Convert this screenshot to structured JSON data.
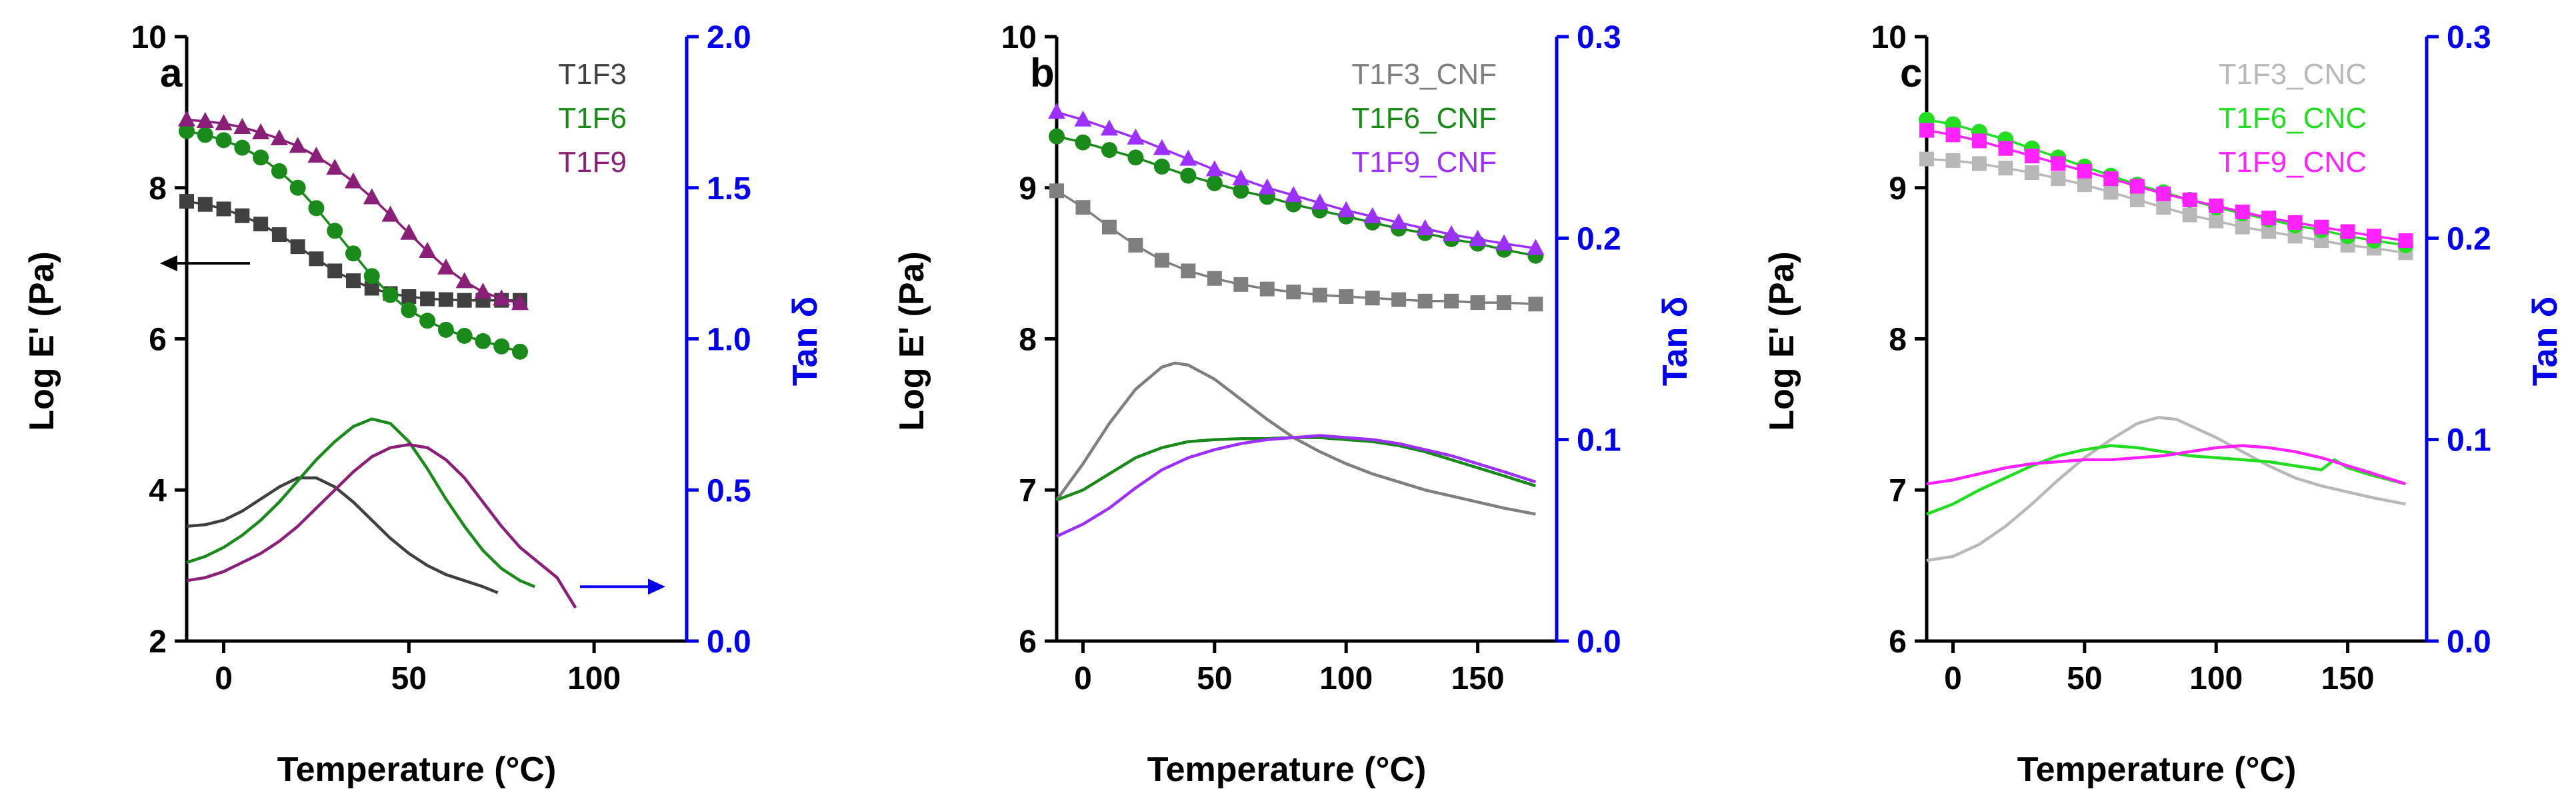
{
  "chart_data": [
    {
      "panel": "a",
      "type": "line",
      "xlabel": "Temperature (°C)",
      "ylabel": "Log E' (Pa)",
      "y2label": "Tan δ",
      "xlim": [
        -10,
        125
      ],
      "ylim": [
        2,
        10
      ],
      "y2lim": [
        0,
        2.0
      ],
      "xticks": [
        0,
        50,
        100
      ],
      "yticks": [
        2,
        4,
        6,
        8,
        10
      ],
      "y2ticks": [
        0.0,
        0.5,
        1.0,
        1.5,
        2.0
      ],
      "xtick_labels": [
        "0",
        "50",
        "100"
      ],
      "ytick_labels": [
        "2",
        "4",
        "6",
        "8",
        "10"
      ],
      "y2tick_labels": [
        "0.0",
        "0.5",
        "1.0",
        "1.5",
        "2.0"
      ],
      "legend_position": "top-right",
      "annotations": [
        "left arrow: E' curves read on left axis",
        "right arrow: tan δ curves read on right axis"
      ],
      "series": [
        {
          "name": "T1F3",
          "color": "#404040",
          "marker": "square",
          "modulus_x": [
            -10,
            -5,
            0,
            5,
            10,
            15,
            20,
            25,
            30,
            35,
            40,
            45,
            50,
            55,
            60,
            65,
            70,
            75,
            80
          ],
          "modulus": [
            7.82,
            7.78,
            7.72,
            7.63,
            7.52,
            7.38,
            7.22,
            7.06,
            6.9,
            6.77,
            6.67,
            6.6,
            6.56,
            6.53,
            6.52,
            6.51,
            6.51,
            6.51,
            6.51
          ],
          "tan_x": [
            -10,
            -5,
            0,
            5,
            10,
            15,
            20,
            25,
            30,
            35,
            40,
            45,
            50,
            55,
            60,
            65,
            70,
            74
          ],
          "tan": [
            0.38,
            0.385,
            0.4,
            0.43,
            0.47,
            0.51,
            0.54,
            0.54,
            0.51,
            0.46,
            0.4,
            0.34,
            0.29,
            0.25,
            0.22,
            0.2,
            0.18,
            0.16
          ]
        },
        {
          "name": "T1F6",
          "color": "#1a8a1a",
          "marker": "circle",
          "modulus_x": [
            -10,
            -5,
            0,
            5,
            10,
            15,
            20,
            25,
            30,
            35,
            40,
            45,
            50,
            55,
            60,
            65,
            70,
            75,
            80
          ],
          "modulus": [
            8.75,
            8.7,
            8.63,
            8.53,
            8.4,
            8.22,
            8.0,
            7.73,
            7.43,
            7.13,
            6.83,
            6.58,
            6.38,
            6.24,
            6.12,
            6.04,
            5.97,
            5.9,
            5.83
          ],
          "tan_x": [
            -10,
            -5,
            0,
            5,
            10,
            15,
            20,
            25,
            30,
            35,
            40,
            45,
            50,
            55,
            60,
            65,
            70,
            75,
            80,
            84
          ],
          "tan": [
            0.26,
            0.28,
            0.31,
            0.35,
            0.4,
            0.46,
            0.53,
            0.6,
            0.66,
            0.71,
            0.735,
            0.72,
            0.66,
            0.57,
            0.47,
            0.38,
            0.3,
            0.24,
            0.2,
            0.18
          ]
        },
        {
          "name": "T1F9",
          "color": "#8a1f78",
          "marker": "triangle",
          "modulus_x": [
            -10,
            -5,
            0,
            5,
            10,
            15,
            20,
            25,
            30,
            35,
            40,
            45,
            50,
            55,
            60,
            65,
            70,
            75,
            80
          ],
          "modulus": [
            8.9,
            8.88,
            8.85,
            8.8,
            8.73,
            8.65,
            8.55,
            8.42,
            8.26,
            8.08,
            7.87,
            7.64,
            7.4,
            7.16,
            6.94,
            6.76,
            6.62,
            6.53,
            6.47
          ],
          "tan_x": [
            -10,
            -5,
            0,
            5,
            10,
            15,
            20,
            25,
            30,
            35,
            40,
            45,
            50,
            55,
            60,
            65,
            70,
            75,
            80,
            85,
            90,
            95
          ],
          "tan": [
            0.2,
            0.21,
            0.23,
            0.26,
            0.29,
            0.33,
            0.38,
            0.44,
            0.5,
            0.56,
            0.61,
            0.64,
            0.65,
            0.64,
            0.6,
            0.54,
            0.46,
            0.38,
            0.31,
            0.26,
            0.21,
            0.11
          ]
        }
      ]
    },
    {
      "panel": "b",
      "type": "line",
      "xlabel": "Temperature (°C)",
      "ylabel": "Log E' (Pa)",
      "y2label": "Tan δ",
      "xlim": [
        -10,
        180
      ],
      "ylim": [
        6,
        10
      ],
      "y2lim": [
        0,
        0.3
      ],
      "xticks": [
        0,
        50,
        100,
        150
      ],
      "yticks": [
        6,
        7,
        8,
        9,
        10
      ],
      "y2ticks": [
        0.0,
        0.1,
        0.2,
        0.3
      ],
      "xtick_labels": [
        "0",
        "50",
        "100",
        "150"
      ],
      "ytick_labels": [
        "6",
        "7",
        "8",
        "9",
        "10"
      ],
      "y2tick_labels": [
        "0.0",
        "0.1",
        "0.2",
        "0.3"
      ],
      "legend_position": "top-right",
      "series": [
        {
          "name": "T1F3_CNF",
          "color": "#7f7f7f",
          "marker": "square",
          "modulus_x": [
            -10,
            0,
            10,
            20,
            30,
            40,
            50,
            60,
            70,
            80,
            90,
            100,
            110,
            120,
            130,
            140,
            150,
            160,
            172
          ],
          "modulus": [
            8.98,
            8.87,
            8.74,
            8.62,
            8.52,
            8.45,
            8.4,
            8.36,
            8.33,
            8.31,
            8.29,
            8.28,
            8.27,
            8.26,
            8.25,
            8.25,
            8.24,
            8.24,
            8.23
          ],
          "tan_x": [
            -10,
            0,
            10,
            20,
            30,
            35,
            40,
            50,
            60,
            70,
            80,
            90,
            100,
            110,
            120,
            130,
            140,
            150,
            160,
            172
          ],
          "tan": [
            0.07,
            0.088,
            0.108,
            0.125,
            0.136,
            0.138,
            0.137,
            0.13,
            0.12,
            0.11,
            0.101,
            0.094,
            0.088,
            0.083,
            0.079,
            0.075,
            0.072,
            0.069,
            0.066,
            0.063
          ]
        },
        {
          "name": "T1F6_CNF",
          "color": "#1a8a1a",
          "marker": "circle",
          "modulus_x": [
            -10,
            0,
            10,
            20,
            30,
            40,
            50,
            60,
            70,
            80,
            90,
            100,
            110,
            120,
            130,
            140,
            150,
            160,
            172
          ],
          "modulus": [
            9.34,
            9.3,
            9.25,
            9.2,
            9.14,
            9.08,
            9.03,
            8.98,
            8.94,
            8.89,
            8.85,
            8.81,
            8.77,
            8.73,
            8.7,
            8.66,
            8.63,
            8.59,
            8.55
          ],
          "tan_x": [
            -10,
            0,
            10,
            20,
            30,
            40,
            50,
            60,
            70,
            80,
            90,
            100,
            110,
            120,
            130,
            140,
            150,
            160,
            172
          ],
          "tan": [
            0.07,
            0.075,
            0.083,
            0.091,
            0.096,
            0.099,
            0.1,
            0.1005,
            0.1005,
            0.101,
            0.101,
            0.1,
            0.099,
            0.097,
            0.094,
            0.09,
            0.086,
            0.082,
            0.077
          ]
        },
        {
          "name": "T1F9_CNF",
          "color": "#9b30ff",
          "marker": "triangle",
          "modulus_x": [
            -10,
            0,
            10,
            20,
            30,
            40,
            50,
            60,
            70,
            80,
            90,
            100,
            110,
            120,
            130,
            140,
            150,
            160,
            172
          ],
          "modulus": [
            9.5,
            9.45,
            9.39,
            9.33,
            9.26,
            9.19,
            9.12,
            9.06,
            9.0,
            8.95,
            8.9,
            8.85,
            8.81,
            8.77,
            8.73,
            8.69,
            8.66,
            8.63,
            8.6
          ],
          "tan_x": [
            -10,
            0,
            10,
            20,
            30,
            40,
            50,
            60,
            70,
            80,
            90,
            100,
            110,
            120,
            130,
            140,
            150,
            160,
            172
          ],
          "tan": [
            0.052,
            0.058,
            0.066,
            0.076,
            0.085,
            0.091,
            0.095,
            0.098,
            0.1,
            0.101,
            0.102,
            0.101,
            0.1,
            0.098,
            0.095,
            0.092,
            0.088,
            0.084,
            0.079
          ]
        }
      ]
    },
    {
      "panel": "c",
      "type": "line",
      "xlabel": "Temperature (°C)",
      "ylabel": "Log E' (Pa)",
      "y2label": "Tan δ",
      "xlim": [
        -10,
        180
      ],
      "ylim": [
        6,
        10
      ],
      "y2lim": [
        0,
        0.3
      ],
      "xticks": [
        0,
        50,
        100,
        150
      ],
      "yticks": [
        6,
        7,
        8,
        9,
        10
      ],
      "y2ticks": [
        0.0,
        0.1,
        0.2,
        0.3
      ],
      "xtick_labels": [
        "0",
        "50",
        "100",
        "150"
      ],
      "ytick_labels": [
        "6",
        "7",
        "8",
        "9",
        "10"
      ],
      "y2tick_labels": [
        "0.0",
        "0.1",
        "0.2",
        "0.3"
      ],
      "legend_position": "top-right",
      "series": [
        {
          "name": "T1F3_CNC",
          "color": "#b8b8b8",
          "marker": "square",
          "modulus_x": [
            -10,
            0,
            10,
            20,
            30,
            40,
            50,
            60,
            70,
            80,
            90,
            100,
            110,
            120,
            130,
            140,
            150,
            160,
            172
          ],
          "modulus": [
            9.19,
            9.18,
            9.16,
            9.13,
            9.1,
            9.06,
            9.02,
            8.97,
            8.92,
            8.87,
            8.82,
            8.78,
            8.74,
            8.71,
            8.68,
            8.65,
            8.62,
            8.6,
            8.57
          ],
          "tan_x": [
            -10,
            0,
            10,
            20,
            30,
            40,
            50,
            60,
            70,
            78,
            85,
            90,
            100,
            110,
            120,
            130,
            140,
            150,
            160,
            172
          ],
          "tan": [
            0.04,
            0.042,
            0.048,
            0.057,
            0.068,
            0.08,
            0.091,
            0.1,
            0.108,
            0.111,
            0.11,
            0.107,
            0.101,
            0.094,
            0.087,
            0.081,
            0.077,
            0.074,
            0.071,
            0.068
          ]
        },
        {
          "name": "T1F6_CNC",
          "color": "#22dd22",
          "marker": "circle",
          "modulus_x": [
            -10,
            0,
            10,
            20,
            30,
            40,
            50,
            60,
            70,
            80,
            90,
            100,
            110,
            120,
            130,
            140,
            150,
            160,
            172
          ],
          "modulus": [
            9.45,
            9.42,
            9.37,
            9.32,
            9.26,
            9.2,
            9.14,
            9.08,
            9.02,
            8.97,
            8.92,
            8.87,
            8.83,
            8.79,
            8.75,
            8.72,
            8.68,
            8.65,
            8.62
          ],
          "tan_x": [
            -10,
            0,
            10,
            20,
            30,
            40,
            50,
            60,
            70,
            80,
            90,
            100,
            110,
            120,
            130,
            140,
            145,
            150,
            160,
            172
          ],
          "tan": [
            0.063,
            0.068,
            0.075,
            0.081,
            0.087,
            0.092,
            0.095,
            0.097,
            0.096,
            0.094,
            0.092,
            0.091,
            0.09,
            0.089,
            0.087,
            0.085,
            0.09,
            0.086,
            0.082,
            0.078
          ]
        },
        {
          "name": "T1F9_CNC",
          "color": "#ff22ff",
          "marker": "square",
          "modulus_x": [
            -10,
            0,
            10,
            20,
            30,
            40,
            50,
            60,
            70,
            80,
            90,
            100,
            110,
            120,
            130,
            140,
            150,
            160,
            172
          ],
          "modulus": [
            9.38,
            9.35,
            9.31,
            9.26,
            9.21,
            9.16,
            9.11,
            9.06,
            9.01,
            8.96,
            8.92,
            8.88,
            8.84,
            8.8,
            8.77,
            8.74,
            8.71,
            8.68,
            8.65
          ],
          "tan_x": [
            -10,
            0,
            10,
            20,
            30,
            40,
            50,
            60,
            70,
            80,
            90,
            100,
            110,
            120,
            130,
            140,
            150,
            160,
            172
          ],
          "tan": [
            0.078,
            0.08,
            0.083,
            0.086,
            0.088,
            0.089,
            0.09,
            0.09,
            0.091,
            0.092,
            0.094,
            0.096,
            0.097,
            0.096,
            0.094,
            0.091,
            0.087,
            0.083,
            0.078
          ]
        }
      ]
    }
  ],
  "colors": {
    "right_axis": "#0000ee",
    "left_axis": "#000000"
  }
}
